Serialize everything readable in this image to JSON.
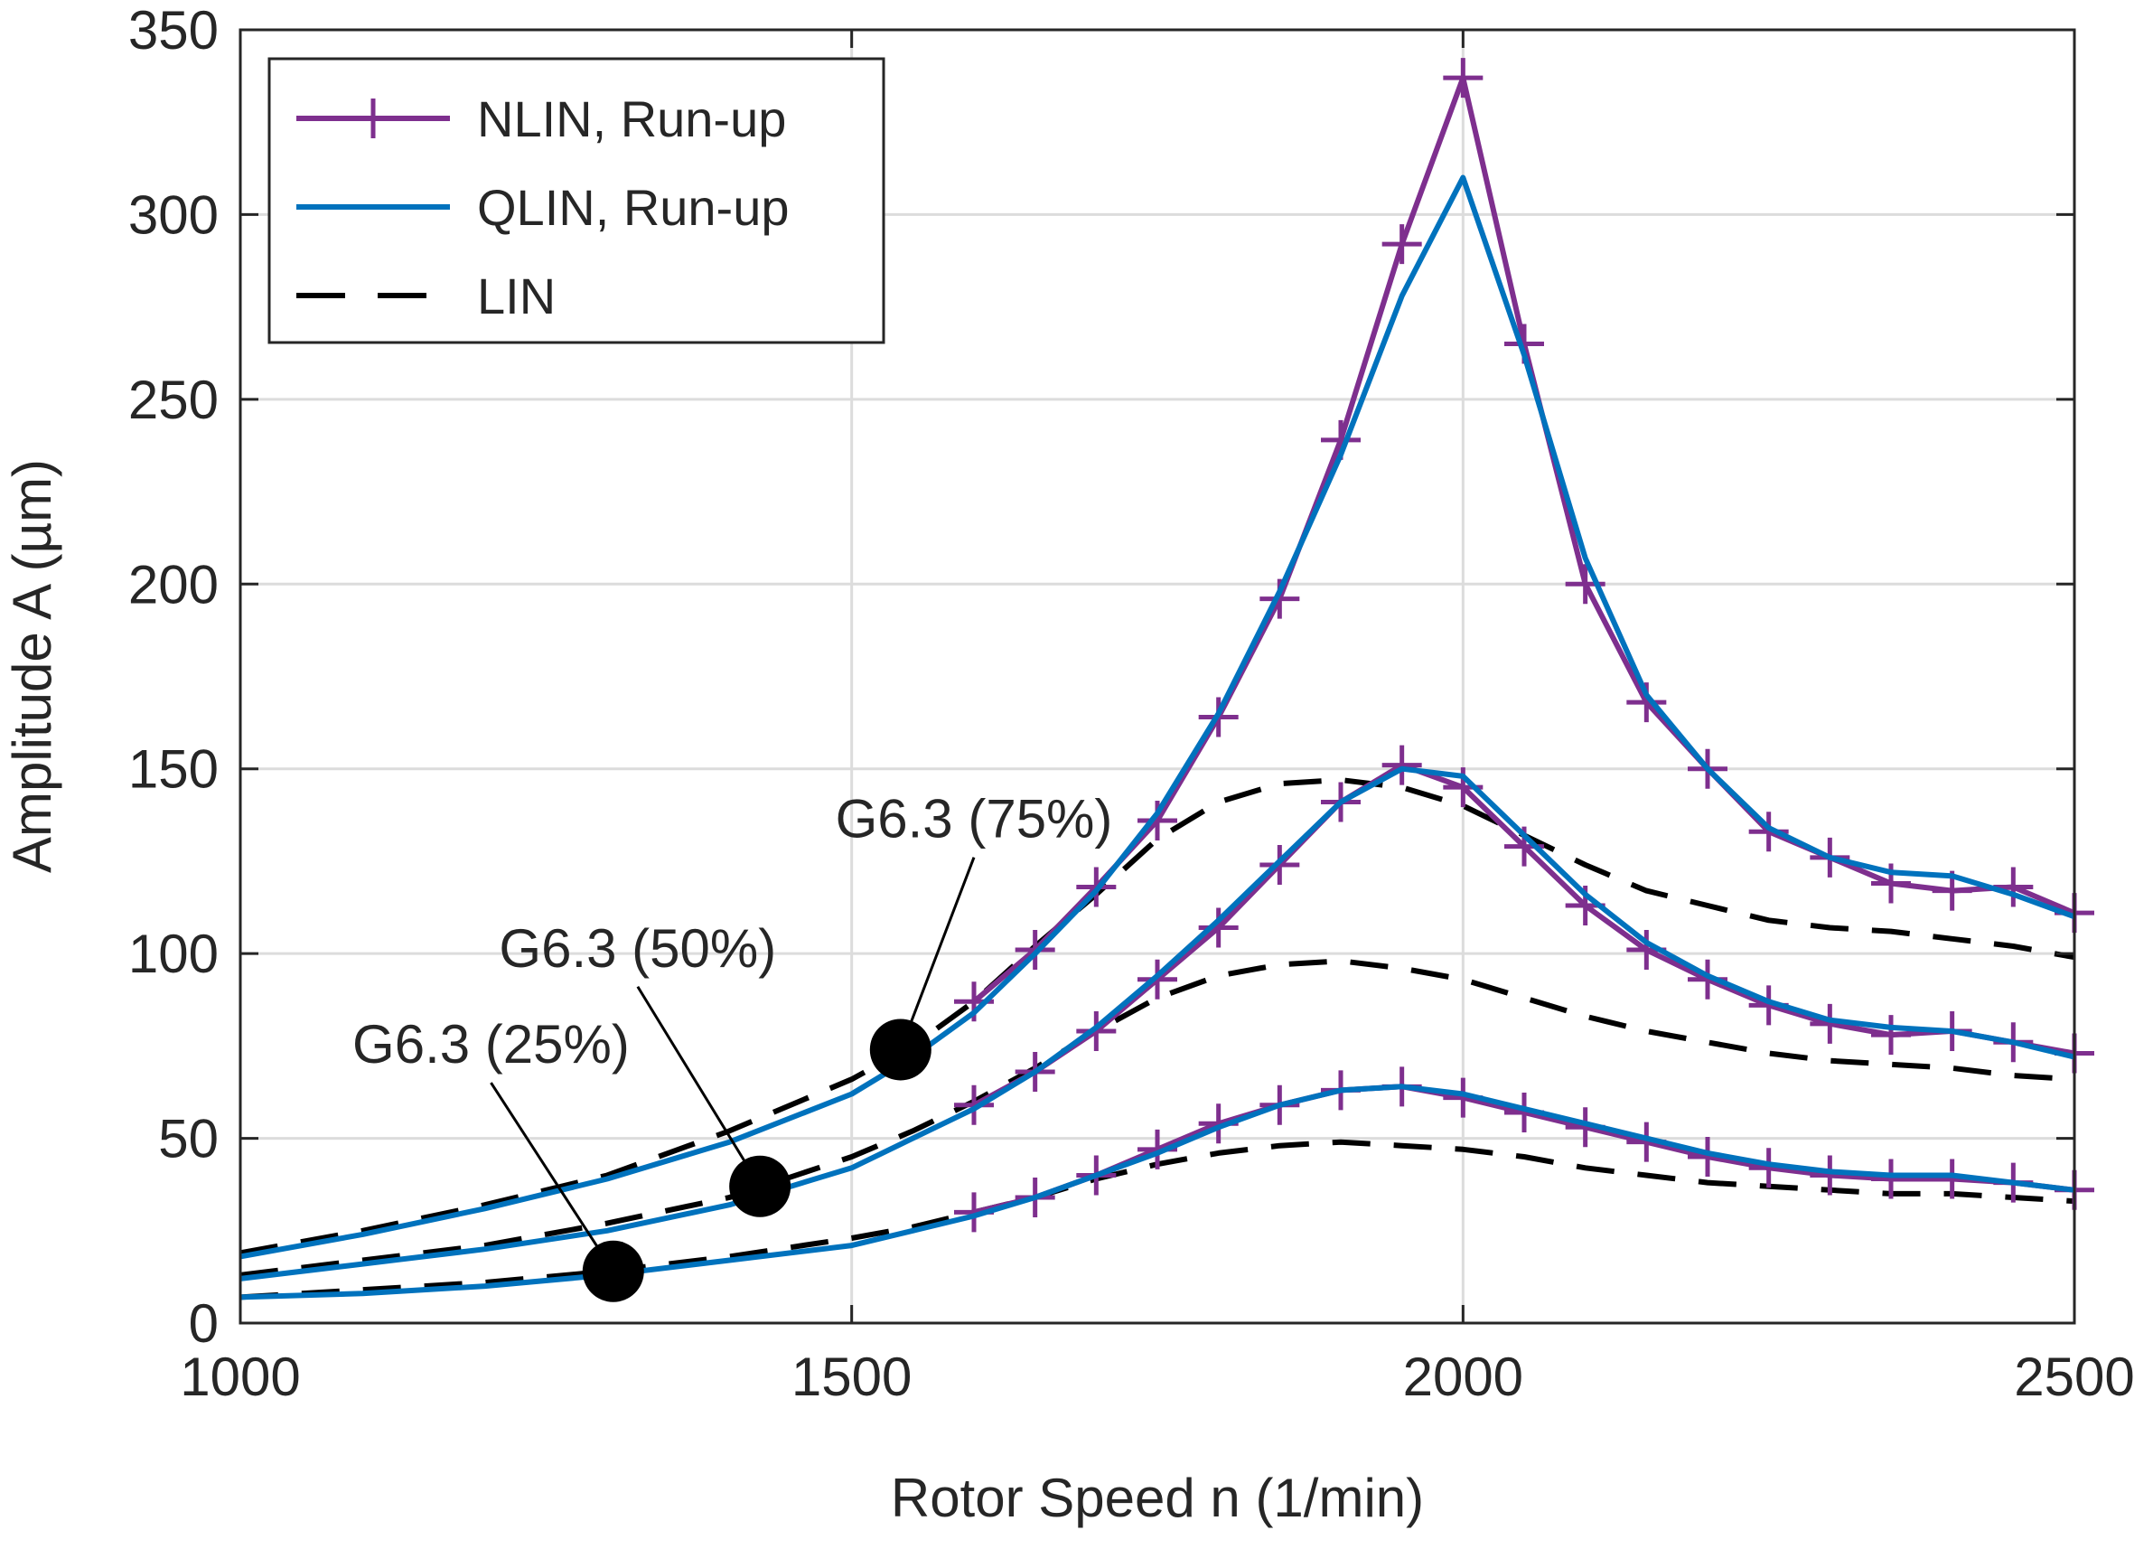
{
  "chart_data": {
    "type": "line",
    "title": "",
    "xlabel": "Rotor Speed n (1/min)",
    "ylabel": "Amplitude A (µm)",
    "xlim": [
      1000,
      2500
    ],
    "ylim": [
      0,
      350
    ],
    "xticks": [
      1000,
      1500,
      2000,
      2500
    ],
    "yticks": [
      0,
      50,
      100,
      150,
      200,
      250,
      300,
      350
    ],
    "grid": true,
    "legend_position": "top-left",
    "colors": {
      "nlin": "#7E2F8E",
      "qlin": "#0072BD",
      "lin": "#000000"
    },
    "legend": [
      {
        "label": "NLIN, Run-up",
        "series": "nlin",
        "style": "solid-plus"
      },
      {
        "label": "QLIN, Run-up",
        "series": "qlin",
        "style": "solid"
      },
      {
        "label": "LIN",
        "series": "lin",
        "style": "dashed"
      }
    ],
    "series": [
      {
        "name": "NLIN, Run-up",
        "group": "G6.3 (75%)",
        "style": "nlin",
        "x": [
          1600,
          1650,
          1700,
          1750,
          1800,
          1850,
          1900,
          1950,
          2000,
          2050,
          2100,
          2150,
          2200,
          2250,
          2300,
          2350,
          2400,
          2450,
          2500
        ],
        "y": [
          87,
          101,
          118,
          136,
          164,
          196,
          239,
          292,
          337,
          265,
          200,
          168,
          150,
          133,
          126,
          119,
          117,
          118,
          111
        ]
      },
      {
        "name": "QLIN, Run-up",
        "group": "G6.3 (75%)",
        "style": "qlin",
        "x": [
          1000,
          1100,
          1200,
          1300,
          1400,
          1500,
          1550,
          1600,
          1650,
          1700,
          1750,
          1800,
          1850,
          1900,
          1950,
          2000,
          2050,
          2100,
          2150,
          2200,
          2250,
          2300,
          2350,
          2400,
          2450,
          2500
        ],
        "y": [
          18,
          24,
          31,
          39,
          49,
          62,
          72,
          84,
          100,
          117,
          138,
          165,
          198,
          235,
          278,
          310,
          262,
          207,
          170,
          150,
          134,
          126,
          122,
          121,
          116,
          110
        ]
      },
      {
        "name": "LIN",
        "group": "G6.3 (75%)",
        "style": "lin",
        "x": [
          1000,
          1100,
          1200,
          1300,
          1400,
          1500,
          1550,
          1600,
          1650,
          1700,
          1750,
          1800,
          1850,
          1900,
          1950,
          2000,
          2050,
          2100,
          2150,
          2200,
          2250,
          2300,
          2350,
          2400,
          2450,
          2500
        ],
        "y": [
          19,
          25,
          32,
          40,
          52,
          66,
          75,
          87,
          102,
          116,
          131,
          141,
          146,
          147,
          145,
          140,
          132,
          124,
          117,
          113,
          109,
          107,
          106,
          104,
          102,
          99
        ]
      },
      {
        "name": "NLIN, Run-up",
        "group": "G6.3 (50%)",
        "style": "nlin",
        "x": [
          1600,
          1650,
          1700,
          1750,
          1800,
          1850,
          1900,
          1950,
          2000,
          2050,
          2100,
          2150,
          2200,
          2250,
          2300,
          2350,
          2400,
          2450,
          2500
        ],
        "y": [
          59,
          68,
          79,
          93,
          107,
          124,
          141,
          151,
          145,
          129,
          113,
          101,
          93,
          86,
          81,
          78,
          79,
          76,
          73
        ]
      },
      {
        "name": "QLIN, Run-up",
        "group": "G6.3 (50%)",
        "style": "qlin",
        "x": [
          1000,
          1100,
          1200,
          1300,
          1400,
          1500,
          1550,
          1600,
          1650,
          1700,
          1750,
          1800,
          1850,
          1900,
          1950,
          2000,
          2050,
          2100,
          2150,
          2200,
          2250,
          2300,
          2350,
          2400,
          2450,
          2500
        ],
        "y": [
          12,
          16,
          20,
          25,
          32,
          42,
          50,
          58,
          68,
          80,
          94,
          109,
          125,
          141,
          150,
          148,
          132,
          116,
          103,
          94,
          87,
          82,
          80,
          79,
          76,
          72
        ]
      },
      {
        "name": "LIN",
        "group": "G6.3 (50%)",
        "style": "lin",
        "x": [
          1000,
          1100,
          1200,
          1300,
          1400,
          1500,
          1550,
          1600,
          1650,
          1700,
          1750,
          1800,
          1850,
          1900,
          1950,
          2000,
          2050,
          2100,
          2150,
          2200,
          2250,
          2300,
          2350,
          2400,
          2450,
          2500
        ],
        "y": [
          13,
          17,
          21,
          27,
          34,
          45,
          52,
          60,
          69,
          79,
          88,
          94,
          97,
          98,
          96,
          93,
          88,
          83,
          79,
          76,
          73,
          71,
          70,
          69,
          67,
          66
        ]
      },
      {
        "name": "NLIN, Run-up",
        "group": "G6.3 (25%)",
        "style": "nlin",
        "x": [
          1600,
          1650,
          1700,
          1750,
          1800,
          1850,
          1900,
          1950,
          2000,
          2050,
          2100,
          2150,
          2200,
          2250,
          2300,
          2350,
          2400,
          2450,
          2500
        ],
        "y": [
          30,
          34,
          40,
          47,
          54,
          59,
          63,
          64,
          61,
          57,
          53,
          49,
          45,
          42,
          40,
          39,
          39,
          38,
          36
        ]
      },
      {
        "name": "QLIN, Run-up",
        "group": "G6.3 (25%)",
        "style": "qlin",
        "x": [
          1000,
          1100,
          1200,
          1300,
          1400,
          1500,
          1550,
          1600,
          1650,
          1700,
          1750,
          1800,
          1850,
          1900,
          1950,
          2000,
          2050,
          2100,
          2150,
          2200,
          2250,
          2300,
          2350,
          2400,
          2450,
          2500
        ],
        "y": [
          7,
          8,
          10,
          13,
          17,
          21,
          25,
          29,
          34,
          40,
          46,
          53,
          59,
          63,
          64,
          62,
          58,
          54,
          50,
          46,
          43,
          41,
          40,
          40,
          38,
          36
        ]
      },
      {
        "name": "LIN",
        "group": "G6.3 (25%)",
        "style": "lin",
        "x": [
          1000,
          1100,
          1200,
          1300,
          1400,
          1500,
          1550,
          1600,
          1650,
          1700,
          1750,
          1800,
          1850,
          1900,
          1950,
          2000,
          2050,
          2100,
          2150,
          2200,
          2250,
          2300,
          2350,
          2400,
          2450,
          2500
        ],
        "y": [
          7,
          9,
          11,
          14,
          18,
          23,
          26,
          30,
          34,
          39,
          43,
          46,
          48,
          49,
          48,
          47,
          45,
          42,
          40,
          38,
          37,
          36,
          35,
          35,
          34,
          33
        ]
      }
    ],
    "annotations": [
      {
        "text": "G6.3 (75%)",
        "point": [
          1540,
          74
        ],
        "label_anchor": [
          1600,
          128
        ]
      },
      {
        "text": "G6.3 (50%)",
        "point": [
          1425,
          37
        ],
        "label_anchor": [
          1325,
          93
        ]
      },
      {
        "text": "G6.3 (25%)",
        "point": [
          1305,
          14
        ],
        "label_anchor": [
          1205,
          67
        ]
      }
    ]
  }
}
